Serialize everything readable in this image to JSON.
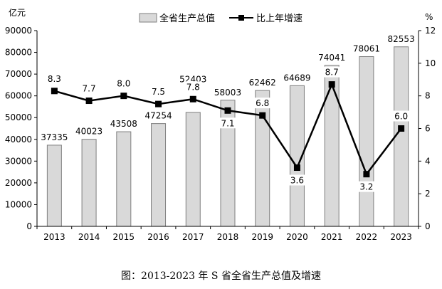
{
  "caption": "图：2013-2023 年 S 省全省生产总值及增速",
  "chart_data": {
    "type": "bar",
    "categories": [
      "2013",
      "2014",
      "2015",
      "2016",
      "2017",
      "2018",
      "2019",
      "2020",
      "2021",
      "2022",
      "2023"
    ],
    "series": [
      {
        "name": "全省生产总值",
        "kind": "bar",
        "axis": "left",
        "values": [
          37335,
          40023,
          43508,
          47254,
          52403,
          58003,
          62462,
          64689,
          74041,
          78061,
          82553
        ],
        "labels": [
          "37335",
          "40023",
          "43508",
          "47254",
          "52403",
          "58003",
          "62462",
          "64689",
          "74041",
          "78061",
          "82553"
        ]
      },
      {
        "name": "比上年增速",
        "kind": "line",
        "axis": "right",
        "values": [
          8.3,
          7.7,
          8.0,
          7.5,
          7.8,
          7.1,
          6.8,
          3.6,
          8.7,
          3.2,
          6.0
        ],
        "labels": [
          "8.3",
          "7.7",
          "8.0",
          "7.5",
          "7.8",
          "7.1",
          "6.8",
          "3.6",
          "8.7",
          "3.2",
          "6.0"
        ]
      }
    ],
    "y_left": {
      "unit": "亿元",
      "ylim": [
        0,
        90000
      ],
      "ticks": [
        "0",
        "10000",
        "20000",
        "30000",
        "40000",
        "50000",
        "60000",
        "70000",
        "80000",
        "90000"
      ]
    },
    "y_right": {
      "unit": "%",
      "ylim": [
        0,
        12
      ],
      "ticks": [
        "0",
        "2",
        "4",
        "6",
        "8",
        "10",
        "12"
      ]
    },
    "legend": {
      "placement": "top-center",
      "bar_label": "全省生产总值",
      "line_label": "比上年增速"
    },
    "colors": {
      "bar_fill": "#d9d9d9",
      "bar_stroke": "#7f7f7f",
      "line": "#000000",
      "axis": "#000000"
    },
    "grid": false
  }
}
